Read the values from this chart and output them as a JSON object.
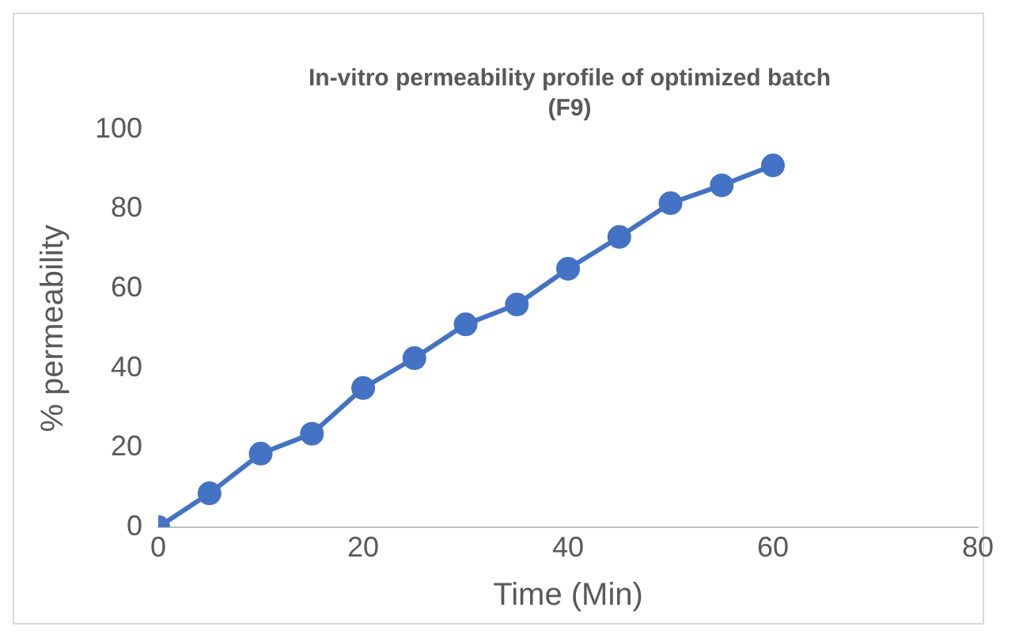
{
  "chart_data": {
    "type": "line",
    "title": "In-vitro permeability profile of optimized batch (F9)",
    "xlabel": "Time (Min)",
    "ylabel": "% permeability",
    "x": [
      0,
      5,
      10,
      15,
      20,
      25,
      30,
      35,
      40,
      45,
      50,
      55,
      60
    ],
    "series": [
      {
        "color": "#4472c4",
        "values": [
          0,
          8.5,
          18.5,
          23.5,
          35,
          42.5,
          51,
          56,
          65,
          73,
          81.5,
          86,
          91
        ]
      }
    ],
    "xlim": [
      0,
      80
    ],
    "xticks": [
      0,
      20,
      40,
      60,
      80
    ],
    "ylim": [
      0,
      100
    ],
    "yticks": [
      0,
      20,
      40,
      60,
      80,
      100
    ],
    "grid": false,
    "legend": false,
    "marker": "circle",
    "line_style": "solid"
  }
}
